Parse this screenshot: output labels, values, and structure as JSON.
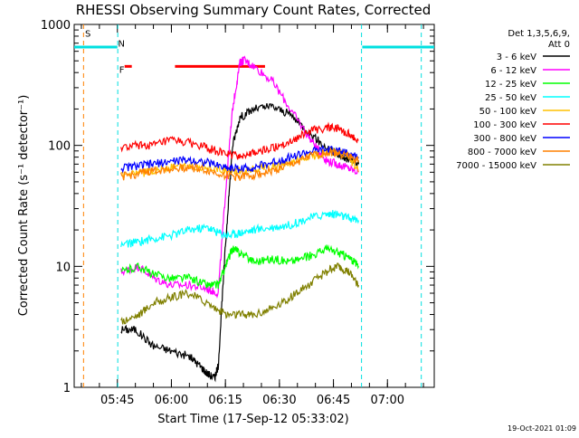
{
  "chart_data": {
    "type": "line",
    "title": "RHESSI Observing Summary Count Rates, Corrected",
    "xlabel": "Start Time (17-Sep-12 05:33:02)",
    "ylabel": "Corrected Count Rate (s⁻¹ detector⁻¹)",
    "yscale": "log",
    "ylim": [
      1,
      1000
    ],
    "y_ticks": [
      {
        "value": 1,
        "label": "1"
      },
      {
        "value": 10,
        "label": "10"
      },
      {
        "value": 100,
        "label": "100"
      },
      {
        "value": 1000,
        "label": "1000"
      }
    ],
    "xlim_minutes": [
      0,
      100
    ],
    "x_ticks": [
      {
        "minute": 12,
        "label": "05:45"
      },
      {
        "minute": 27,
        "label": "06:00"
      },
      {
        "minute": 42,
        "label": "06:15"
      },
      {
        "minute": 57,
        "label": "06:30"
      },
      {
        "minute": 72,
        "label": "06:45"
      },
      {
        "minute": 87,
        "label": "07:00"
      }
    ],
    "legend_header": [
      "Det 1,3,5,6,9,",
      "Att 0"
    ],
    "legend_position": "right",
    "series": [
      {
        "name": "3 - 6 keV",
        "color": "#000000",
        "x": [
          13,
          17,
          22,
          27,
          32,
          35,
          37,
          39,
          40,
          42,
          44,
          46,
          50,
          55,
          60,
          65,
          70,
          73,
          75,
          77,
          79
        ],
        "y": [
          3,
          3,
          2.2,
          2,
          1.8,
          1.5,
          1.3,
          1.2,
          1.5,
          15,
          100,
          170,
          200,
          210,
          180,
          130,
          95,
          85,
          80,
          75,
          70
        ]
      },
      {
        "name": "6 - 12 keV",
        "color": "#ff00ff",
        "x": [
          13,
          18,
          22,
          27,
          32,
          37,
          40,
          42,
          44,
          46,
          47,
          50,
          55,
          60,
          65,
          68,
          70,
          73,
          76,
          79
        ],
        "y": [
          9,
          10,
          8,
          7,
          7,
          6.5,
          6,
          40,
          200,
          480,
          510,
          450,
          340,
          200,
          120,
          90,
          75,
          70,
          65,
          60
        ]
      },
      {
        "name": "12 - 25 keV",
        "color": "#00ff00",
        "x": [
          13,
          18,
          22,
          27,
          32,
          37,
          40,
          42,
          44,
          46,
          50,
          55,
          60,
          65,
          70,
          73,
          76,
          79
        ],
        "y": [
          9,
          10,
          8.5,
          8,
          8,
          7,
          7,
          10,
          14,
          13,
          11,
          11.5,
          11,
          12,
          14,
          13,
          12,
          10
        ]
      },
      {
        "name": "25 - 50 keV",
        "color": "#00ffff",
        "x": [
          13,
          18,
          22,
          27,
          32,
          37,
          40,
          43,
          46,
          50,
          55,
          60,
          65,
          70,
          73,
          76,
          79
        ],
        "y": [
          15,
          16,
          17,
          18,
          20,
          21,
          19,
          18,
          19,
          20,
          21,
          22,
          25,
          27,
          27,
          25,
          24
        ]
      },
      {
        "name": "50 - 100 keV",
        "color": "#ffc000",
        "x": [
          13,
          18,
          22,
          27,
          32,
          37,
          42,
          46,
          50,
          55,
          60,
          65,
          70,
          73,
          76,
          79
        ],
        "y": [
          55,
          58,
          62,
          66,
          68,
          66,
          62,
          62,
          64,
          66,
          70,
          80,
          88,
          88,
          82,
          60
        ]
      },
      {
        "name": "100 - 300 keV",
        "color": "#ff0000",
        "x": [
          13,
          18,
          22,
          27,
          32,
          37,
          42,
          46,
          50,
          55,
          60,
          65,
          70,
          73,
          76,
          79
        ],
        "y": [
          95,
          100,
          100,
          110,
          105,
          95,
          85,
          82,
          86,
          95,
          108,
          130,
          140,
          138,
          125,
          110
        ]
      },
      {
        "name": "300 - 800 keV",
        "color": "#0000ff",
        "x": [
          13,
          18,
          22,
          27,
          32,
          37,
          42,
          46,
          50,
          55,
          60,
          65,
          70,
          73,
          76,
          79
        ],
        "y": [
          65,
          68,
          70,
          74,
          76,
          72,
          66,
          64,
          66,
          72,
          80,
          88,
          92,
          90,
          85,
          80
        ]
      },
      {
        "name": "800 - 7000 keV",
        "color": "#ff8000",
        "x": [
          13,
          18,
          22,
          27,
          32,
          37,
          42,
          46,
          50,
          55,
          60,
          65,
          70,
          73,
          76,
          79
        ],
        "y": [
          55,
          58,
          62,
          64,
          66,
          62,
          57,
          55,
          57,
          61,
          69,
          80,
          88,
          87,
          82,
          75
        ]
      },
      {
        "name": "7000 - 15000 keV",
        "color": "#808000",
        "x": [
          13,
          18,
          22,
          27,
          32,
          37,
          42,
          46,
          50,
          55,
          60,
          65,
          70,
          73,
          76,
          79
        ],
        "y": [
          3.5,
          4,
          5,
          5.5,
          6,
          5,
          4,
          4,
          4,
          4.5,
          5.5,
          7,
          9,
          10,
          9,
          7
        ]
      }
    ],
    "attenuator_segments": [
      {
        "color": "#00e0e0",
        "from_minute": 0,
        "to_minute": 12
      },
      {
        "color": "#00e0e0",
        "from_minute": 80,
        "to_minute": 100
      }
    ],
    "flare_segments": [
      {
        "color": "#ff0000",
        "from_minute": 14,
        "to_minute": 16
      },
      {
        "color": "#ff0000",
        "from_minute": 28,
        "to_minute": 53
      }
    ],
    "markers": [
      {
        "label": "S",
        "color": "#ff8000",
        "minute": 3
      },
      {
        "label": "N",
        "color": "#00e0e0",
        "minute": 12.2
      },
      {
        "label": "F",
        "color": "#ff0000",
        "minute": 12.5
      }
    ],
    "vlines": [
      {
        "minute": 2.6,
        "color": "#ff8000"
      },
      {
        "minute": 12.1,
        "color": "#00e0e0"
      },
      {
        "minute": 79.8,
        "color": "#00e0e0"
      },
      {
        "minute": 96.4,
        "color": "#00e0e0"
      }
    ],
    "footer_timestamp": "19-Oct-2021 01:09"
  }
}
